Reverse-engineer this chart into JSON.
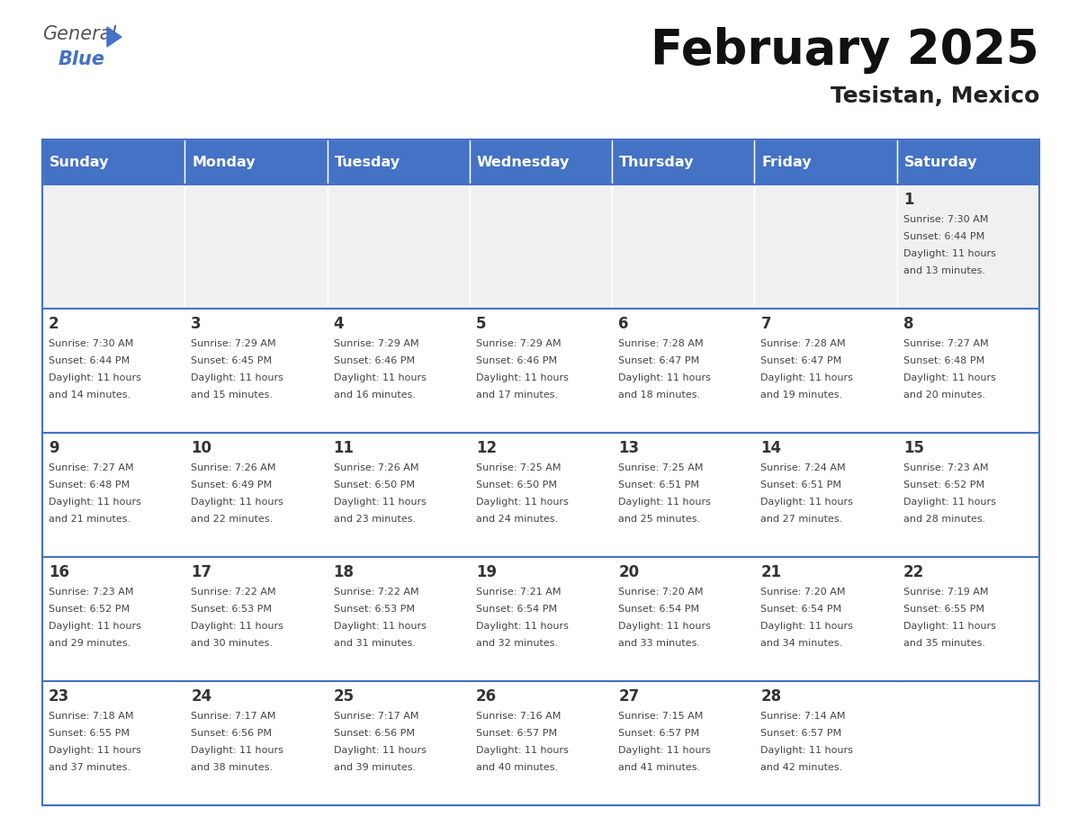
{
  "title": "February 2025",
  "subtitle": "Tesistan, Mexico",
  "header_bg_color": "#4472C4",
  "header_text_color": "#FFFFFF",
  "days_of_week": [
    "Sunday",
    "Monday",
    "Tuesday",
    "Wednesday",
    "Thursday",
    "Friday",
    "Saturday"
  ],
  "cell_border_color": "#4472C4",
  "day_number_color": "#333333",
  "info_text_color": "#444444",
  "row0_bg": "#F0F0F0",
  "row1_bg": "#FFFFFF",
  "calendar": [
    [
      {
        "day": "",
        "sunrise": "",
        "sunset": "",
        "daylight": ""
      },
      {
        "day": "",
        "sunrise": "",
        "sunset": "",
        "daylight": ""
      },
      {
        "day": "",
        "sunrise": "",
        "sunset": "",
        "daylight": ""
      },
      {
        "day": "",
        "sunrise": "",
        "sunset": "",
        "daylight": ""
      },
      {
        "day": "",
        "sunrise": "",
        "sunset": "",
        "daylight": ""
      },
      {
        "day": "",
        "sunrise": "",
        "sunset": "",
        "daylight": ""
      },
      {
        "day": "1",
        "sunrise": "7:30 AM",
        "sunset": "6:44 PM",
        "daylight": "11 hours and 13 minutes."
      }
    ],
    [
      {
        "day": "2",
        "sunrise": "7:30 AM",
        "sunset": "6:44 PM",
        "daylight": "11 hours and 14 minutes."
      },
      {
        "day": "3",
        "sunrise": "7:29 AM",
        "sunset": "6:45 PM",
        "daylight": "11 hours and 15 minutes."
      },
      {
        "day": "4",
        "sunrise": "7:29 AM",
        "sunset": "6:46 PM",
        "daylight": "11 hours and 16 minutes."
      },
      {
        "day": "5",
        "sunrise": "7:29 AM",
        "sunset": "6:46 PM",
        "daylight": "11 hours and 17 minutes."
      },
      {
        "day": "6",
        "sunrise": "7:28 AM",
        "sunset": "6:47 PM",
        "daylight": "11 hours and 18 minutes."
      },
      {
        "day": "7",
        "sunrise": "7:28 AM",
        "sunset": "6:47 PM",
        "daylight": "11 hours and 19 minutes."
      },
      {
        "day": "8",
        "sunrise": "7:27 AM",
        "sunset": "6:48 PM",
        "daylight": "11 hours and 20 minutes."
      }
    ],
    [
      {
        "day": "9",
        "sunrise": "7:27 AM",
        "sunset": "6:48 PM",
        "daylight": "11 hours and 21 minutes."
      },
      {
        "day": "10",
        "sunrise": "7:26 AM",
        "sunset": "6:49 PM",
        "daylight": "11 hours and 22 minutes."
      },
      {
        "day": "11",
        "sunrise": "7:26 AM",
        "sunset": "6:50 PM",
        "daylight": "11 hours and 23 minutes."
      },
      {
        "day": "12",
        "sunrise": "7:25 AM",
        "sunset": "6:50 PM",
        "daylight": "11 hours and 24 minutes."
      },
      {
        "day": "13",
        "sunrise": "7:25 AM",
        "sunset": "6:51 PM",
        "daylight": "11 hours and 25 minutes."
      },
      {
        "day": "14",
        "sunrise": "7:24 AM",
        "sunset": "6:51 PM",
        "daylight": "11 hours and 27 minutes."
      },
      {
        "day": "15",
        "sunrise": "7:23 AM",
        "sunset": "6:52 PM",
        "daylight": "11 hours and 28 minutes."
      }
    ],
    [
      {
        "day": "16",
        "sunrise": "7:23 AM",
        "sunset": "6:52 PM",
        "daylight": "11 hours and 29 minutes."
      },
      {
        "day": "17",
        "sunrise": "7:22 AM",
        "sunset": "6:53 PM",
        "daylight": "11 hours and 30 minutes."
      },
      {
        "day": "18",
        "sunrise": "7:22 AM",
        "sunset": "6:53 PM",
        "daylight": "11 hours and 31 minutes."
      },
      {
        "day": "19",
        "sunrise": "7:21 AM",
        "sunset": "6:54 PM",
        "daylight": "11 hours and 32 minutes."
      },
      {
        "day": "20",
        "sunrise": "7:20 AM",
        "sunset": "6:54 PM",
        "daylight": "11 hours and 33 minutes."
      },
      {
        "day": "21",
        "sunrise": "7:20 AM",
        "sunset": "6:54 PM",
        "daylight": "11 hours and 34 minutes."
      },
      {
        "day": "22",
        "sunrise": "7:19 AM",
        "sunset": "6:55 PM",
        "daylight": "11 hours and 35 minutes."
      }
    ],
    [
      {
        "day": "23",
        "sunrise": "7:18 AM",
        "sunset": "6:55 PM",
        "daylight": "11 hours and 37 minutes."
      },
      {
        "day": "24",
        "sunrise": "7:17 AM",
        "sunset": "6:56 PM",
        "daylight": "11 hours and 38 minutes."
      },
      {
        "day": "25",
        "sunrise": "7:17 AM",
        "sunset": "6:56 PM",
        "daylight": "11 hours and 39 minutes."
      },
      {
        "day": "26",
        "sunrise": "7:16 AM",
        "sunset": "6:57 PM",
        "daylight": "11 hours and 40 minutes."
      },
      {
        "day": "27",
        "sunrise": "7:15 AM",
        "sunset": "6:57 PM",
        "daylight": "11 hours and 41 minutes."
      },
      {
        "day": "28",
        "sunrise": "7:14 AM",
        "sunset": "6:57 PM",
        "daylight": "11 hours and 42 minutes."
      },
      {
        "day": "",
        "sunrise": "",
        "sunset": "",
        "daylight": ""
      }
    ]
  ]
}
